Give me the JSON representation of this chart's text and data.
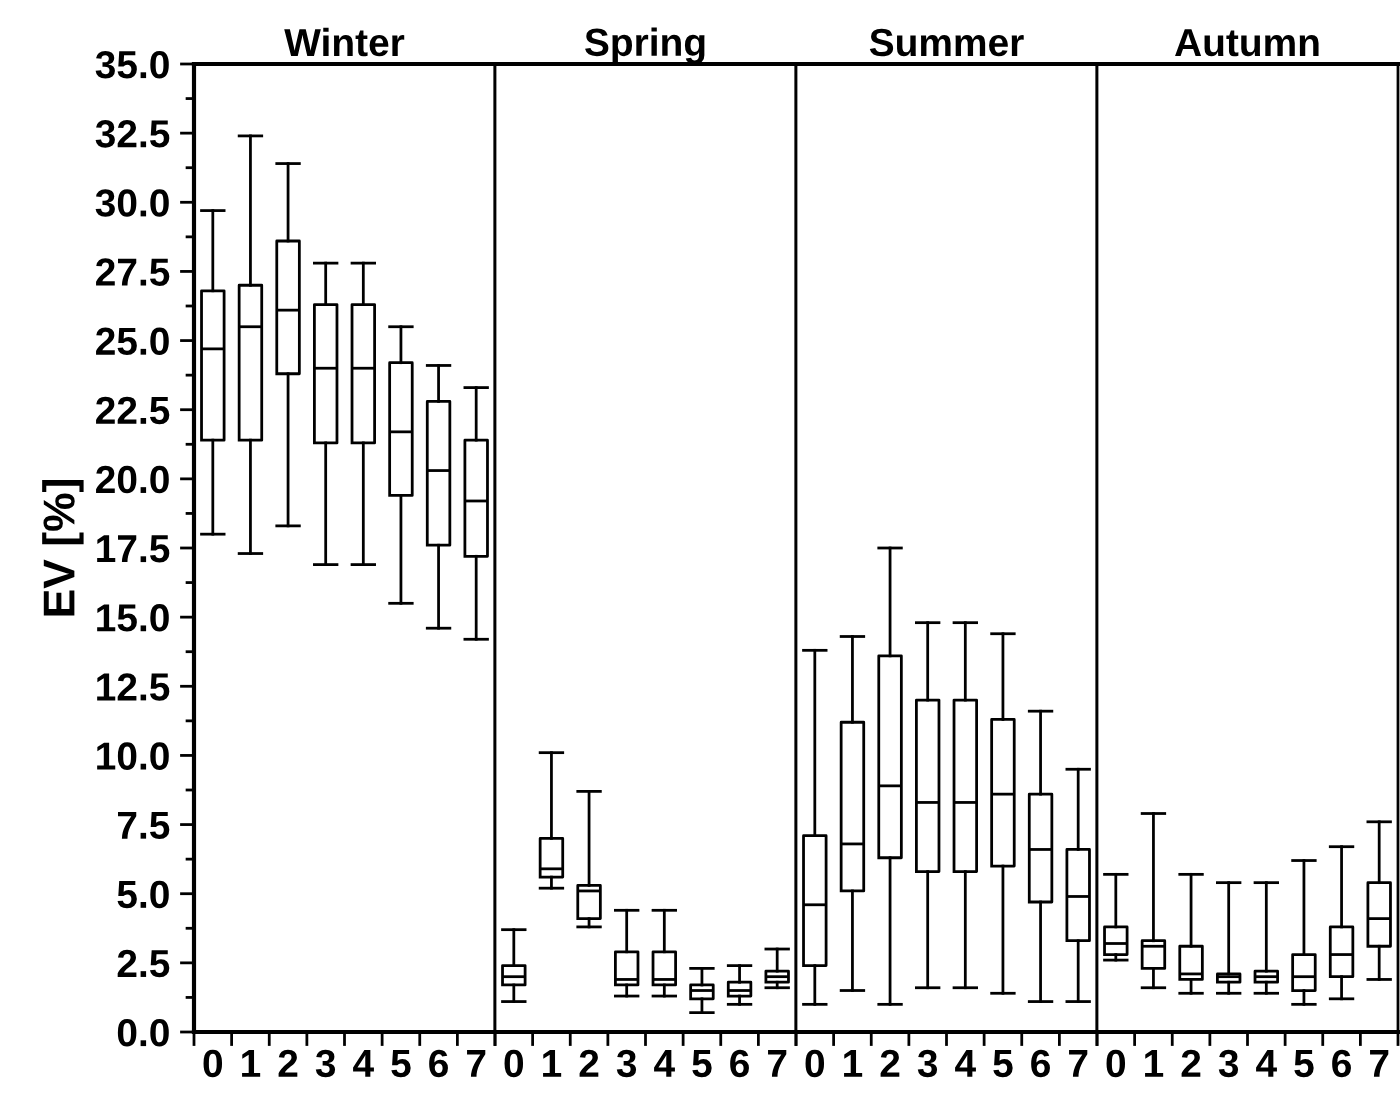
{
  "chart_data": [
    {
      "type": "box",
      "title": "Winter",
      "ylabel": "EV [%]",
      "categories": [
        "0",
        "1",
        "2",
        "3",
        "4",
        "5",
        "6",
        "7"
      ],
      "ylim": [
        0,
        35
      ],
      "yticks": [
        {
          "value": 0,
          "label": "0.0"
        },
        {
          "value": 2.5,
          "label": "2.5"
        },
        {
          "value": 5,
          "label": "5.0"
        },
        {
          "value": 7.5,
          "label": "7.5"
        },
        {
          "value": 10,
          "label": "10.0"
        },
        {
          "value": 12.5,
          "label": "12.5"
        },
        {
          "value": 15,
          "label": "15.0"
        },
        {
          "value": 17.5,
          "label": "17.5"
        },
        {
          "value": 20,
          "label": "20.0"
        },
        {
          "value": 22.5,
          "label": "22.5"
        },
        {
          "value": 25,
          "label": "25.0"
        },
        {
          "value": 27.5,
          "label": "27.5"
        },
        {
          "value": 30,
          "label": "30.0"
        },
        {
          "value": 32.5,
          "label": "32.5"
        },
        {
          "value": 35,
          "label": "35.0"
        }
      ],
      "grid": false,
      "color": "#000000",
      "boxes": [
        {
          "low": 18.0,
          "q1": 21.4,
          "median": 24.7,
          "q3": 26.8,
          "high": 29.7
        },
        {
          "low": 17.3,
          "q1": 21.4,
          "median": 25.5,
          "q3": 27.0,
          "high": 32.4
        },
        {
          "low": 18.3,
          "q1": 23.8,
          "median": 26.1,
          "q3": 28.6,
          "high": 31.4
        },
        {
          "low": 16.9,
          "q1": 21.3,
          "median": 24.0,
          "q3": 26.3,
          "high": 27.8
        },
        {
          "low": 16.9,
          "q1": 21.3,
          "median": 24.0,
          "q3": 26.3,
          "high": 27.8
        },
        {
          "low": 15.5,
          "q1": 19.4,
          "median": 21.7,
          "q3": 24.2,
          "high": 25.5
        },
        {
          "low": 14.6,
          "q1": 17.6,
          "median": 20.3,
          "q3": 22.8,
          "high": 24.1
        },
        {
          "low": 14.2,
          "q1": 17.2,
          "median": 19.2,
          "q3": 21.4,
          "high": 23.3
        }
      ]
    },
    {
      "type": "box",
      "title": "Spring",
      "categories": [
        "0",
        "1",
        "2",
        "3",
        "4",
        "5",
        "6",
        "7"
      ],
      "ylim": [
        0,
        35
      ],
      "tick_labels": "x",
      "grid": false,
      "color": "#000000",
      "boxes": [
        {
          "low": 1.1,
          "q1": 1.7,
          "median": 2.0,
          "q3": 2.4,
          "high": 3.7
        },
        {
          "low": 5.2,
          "q1": 5.6,
          "median": 5.9,
          "q3": 7.0,
          "high": 10.1
        },
        {
          "low": 3.8,
          "q1": 4.1,
          "median": 5.1,
          "q3": 5.3,
          "high": 8.7
        },
        {
          "low": 1.3,
          "q1": 1.7,
          "median": 1.9,
          "q3": 2.9,
          "high": 4.4
        },
        {
          "low": 1.3,
          "q1": 1.7,
          "median": 1.9,
          "q3": 2.9,
          "high": 4.4
        },
        {
          "low": 0.7,
          "q1": 1.2,
          "median": 1.5,
          "q3": 1.7,
          "high": 2.3
        },
        {
          "low": 1.0,
          "q1": 1.3,
          "median": 1.5,
          "q3": 1.8,
          "high": 2.4
        },
        {
          "low": 1.6,
          "q1": 1.8,
          "median": 2.0,
          "q3": 2.2,
          "high": 3.0
        }
      ]
    },
    {
      "type": "box",
      "title": "Summer",
      "categories": [
        "0",
        "1",
        "2",
        "3",
        "4",
        "5",
        "6",
        "7"
      ],
      "ylim": [
        0,
        35
      ],
      "tick_labels": "x",
      "grid": false,
      "color": "#000000",
      "boxes": [
        {
          "low": 1.0,
          "q1": 2.4,
          "median": 4.6,
          "q3": 7.1,
          "high": 13.8
        },
        {
          "low": 1.5,
          "q1": 5.1,
          "median": 6.8,
          "q3": 11.2,
          "high": 14.3
        },
        {
          "low": 1.0,
          "q1": 6.3,
          "median": 8.9,
          "q3": 13.6,
          "high": 17.5
        },
        {
          "low": 1.6,
          "q1": 5.8,
          "median": 8.3,
          "q3": 12.0,
          "high": 14.8
        },
        {
          "low": 1.6,
          "q1": 5.8,
          "median": 8.3,
          "q3": 12.0,
          "high": 14.8
        },
        {
          "low": 1.4,
          "q1": 6.0,
          "median": 8.6,
          "q3": 11.3,
          "high": 14.4
        },
        {
          "low": 1.1,
          "q1": 4.7,
          "median": 6.6,
          "q3": 8.6,
          "high": 11.6
        },
        {
          "low": 1.1,
          "q1": 3.3,
          "median": 4.9,
          "q3": 6.6,
          "high": 9.5
        }
      ]
    },
    {
      "type": "box",
      "title": "Autumn",
      "categories": [
        "0",
        "1",
        "2",
        "3",
        "4",
        "5",
        "6",
        "7"
      ],
      "ylim": [
        0,
        35
      ],
      "tick_labels": "x",
      "grid": false,
      "color": "#000000",
      "boxes": [
        {
          "low": 2.6,
          "q1": 2.8,
          "median": 3.2,
          "q3": 3.8,
          "high": 5.7
        },
        {
          "low": 1.6,
          "q1": 2.3,
          "median": 3.1,
          "q3": 3.3,
          "high": 7.9
        },
        {
          "low": 1.4,
          "q1": 1.9,
          "median": 2.1,
          "q3": 3.1,
          "high": 5.7
        },
        {
          "low": 1.4,
          "q1": 1.8,
          "median": 2.0,
          "q3": 2.1,
          "high": 5.4
        },
        {
          "low": 1.4,
          "q1": 1.8,
          "median": 2.0,
          "q3": 2.2,
          "high": 5.4
        },
        {
          "low": 1.0,
          "q1": 1.5,
          "median": 2.0,
          "q3": 2.8,
          "high": 6.2
        },
        {
          "low": 1.2,
          "q1": 2.0,
          "median": 2.8,
          "q3": 3.8,
          "high": 6.7
        },
        {
          "low": 1.9,
          "q1": 3.1,
          "median": 4.1,
          "q3": 5.4,
          "high": 7.6
        }
      ]
    }
  ]
}
